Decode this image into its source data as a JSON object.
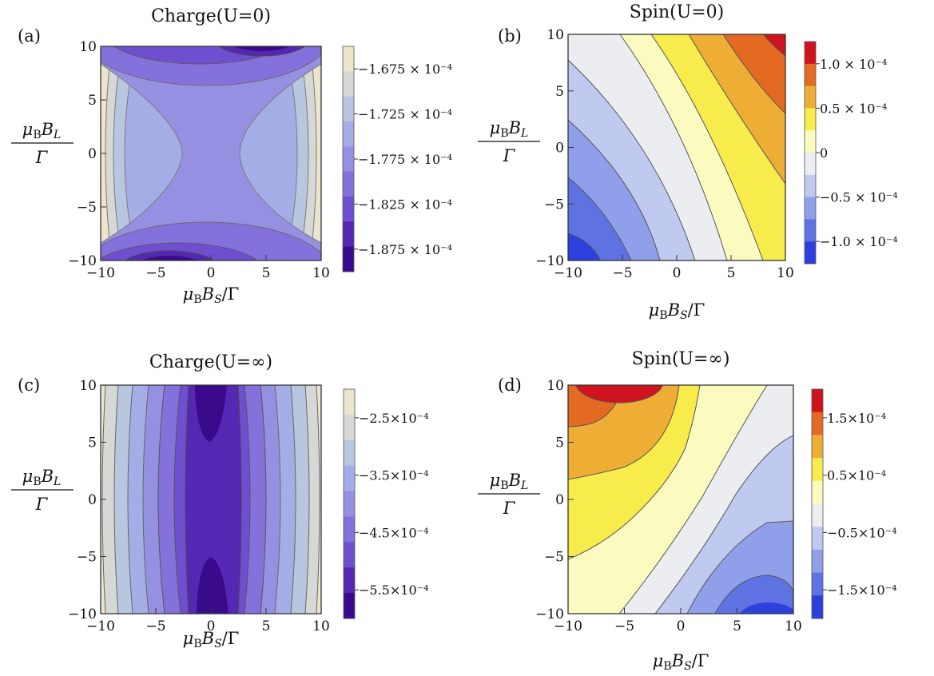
{
  "panels": [
    {
      "id": "a",
      "panel_label": "(a)",
      "title": "Charge(U=0)",
      "xlabel": "μ_B B_S/Γ",
      "ylabel": "μ_B B_L/Γ",
      "x_ticks": [
        "−10",
        "−5",
        "0",
        "5",
        "10"
      ],
      "y_ticks": [
        "10",
        "5",
        "0",
        "−5",
        "−10"
      ],
      "colorbar_ticks": [
        "−1.675 × 10⁻⁴",
        "−1.725 × 10⁻⁴",
        "−1.775 × 10⁻⁴",
        "−1.825 × 10⁻⁴",
        "−1.875 × 10⁻⁴"
      ],
      "colorbar_colors": [
        "#ece4cc",
        "#d6d8d6",
        "#b9c6e0",
        "#a5ade6",
        "#9590e2",
        "#8471dc",
        "#6e4fcf",
        "#5428b3",
        "#3a0a8c"
      ]
    },
    {
      "id": "b",
      "panel_label": "(b)",
      "title": "Spin(U=0)",
      "xlabel": "μ_B B_S/Γ",
      "ylabel": "μ_B B_L/Γ",
      "x_ticks": [
        "−10",
        "−5",
        "0",
        "5",
        "10"
      ],
      "y_ticks": [
        "10",
        "5",
        "0",
        "−5",
        "−10"
      ],
      "colorbar_ticks": [
        "1.0 × 10⁻⁴",
        "0.5 × 10⁻⁴",
        "0",
        "−0.5 × 10⁻⁴",
        "−1.0 × 10⁻⁴"
      ],
      "colorbar_colors": [
        "#d0141f",
        "#e46a22",
        "#eeae36",
        "#f7ec4b",
        "#fbfbc0",
        "#ecedf0",
        "#c0c9ef",
        "#8f9fea",
        "#5f72e2",
        "#2e3fe0"
      ]
    },
    {
      "id": "c",
      "panel_label": "(c)",
      "title": "Charge(U=∞)",
      "xlabel": "μ_B B_S/Γ",
      "ylabel": "μ_B B_L/Γ",
      "x_ticks": [
        "−10",
        "−5",
        "0",
        "5",
        "10"
      ],
      "y_ticks": [
        "10",
        "5",
        "0",
        "−5",
        "−10"
      ],
      "colorbar_ticks": [
        "−2.5×10⁻⁴",
        "−3.5×10⁻⁴",
        "−4.5×10⁻⁴",
        "−5.5×10⁻⁴"
      ],
      "colorbar_colors": [
        "#ece4cc",
        "#d6d8d6",
        "#b9c6e0",
        "#a5ade6",
        "#9590e2",
        "#8471dc",
        "#6e4fcf",
        "#5428b3",
        "#3a0a8c"
      ]
    },
    {
      "id": "d",
      "panel_label": "(d)",
      "title": "Spin(U=∞)",
      "xlabel": "μ_B B_S/Γ",
      "ylabel": "μ_B B_L/Γ",
      "x_ticks": [
        "−10",
        "−5",
        "0",
        "5",
        "10"
      ],
      "y_ticks": [
        "10",
        "5",
        "0",
        "−5",
        "−10"
      ],
      "colorbar_ticks": [
        "1.5×10⁻⁴",
        "0.5×10⁻⁴",
        "−0.5×10⁻⁴",
        "−1.5×10⁻⁴"
      ],
      "colorbar_colors": [
        "#d0141f",
        "#e46a22",
        "#eeae36",
        "#f7ec4b",
        "#fbfbc0",
        "#ecedf0",
        "#c0c9ef",
        "#8f9fea",
        "#5f72e2",
        "#2e3fe0"
      ]
    }
  ],
  "chart_data": [
    {
      "type": "heatmap",
      "title": "Charge(U=0)",
      "xlabel": "μ_B B_S/Γ",
      "ylabel": "μ_B B_L/Γ",
      "xlim": [
        -10,
        10
      ],
      "ylim": [
        -10,
        10
      ],
      "colorbar_range": [
        -0.00019,
        -0.000165
      ],
      "contour_levels": [
        -0.0001675,
        -0.00017,
        -0.0001725,
        -0.000175,
        -0.0001775,
        -0.00018,
        -0.0001825,
        -0.000185,
        -0.0001875
      ],
      "pattern": "saddle: minimum near (-3, ±10), maximum at x = ±10",
      "series": []
    },
    {
      "type": "heatmap",
      "title": "Spin(U=0)",
      "xlabel": "μ_B B_S/Γ",
      "ylabel": "μ_B B_L/Γ",
      "xlim": [
        -10,
        10
      ],
      "ylim": [
        -10,
        10
      ],
      "colorbar_range": [
        -0.000125,
        0.000125
      ],
      "contour_levels": [
        -0.0001,
        -7.5e-05,
        -5e-05,
        -2.5e-05,
        0,
        2.5e-05,
        5e-05,
        7.5e-05,
        0.0001
      ],
      "pattern": "diagonal bands, maximum at (10, 10), minimum at (-10, -10)",
      "series": []
    },
    {
      "type": "heatmap",
      "title": "Charge(U=∞)",
      "xlabel": "μ_B B_S/Γ",
      "ylabel": "μ_B B_L/Γ",
      "xlim": [
        -10,
        10
      ],
      "ylim": [
        -10,
        10
      ],
      "colorbar_range": [
        -0.0006,
        -0.0002
      ],
      "contour_levels": [
        -0.00025,
        -0.0003,
        -0.00035,
        -0.0004,
        -0.00045,
        -0.0005,
        -0.00055
      ],
      "pattern": "vertical bands, minimum near x = 0 at y = ±10, maximum at x = ±10",
      "series": []
    },
    {
      "type": "heatmap",
      "title": "Spin(U=∞)",
      "xlabel": "μ_B B_S/Γ",
      "ylabel": "μ_B B_L/Γ",
      "xlim": [
        -10,
        10
      ],
      "ylim": [
        -10,
        10
      ],
      "colorbar_range": [
        -0.0002,
        0.0002
      ],
      "contour_levels": [
        -0.00015,
        -0.0001,
        -5e-05,
        0,
        5e-05,
        0.0001,
        0.00015
      ],
      "pattern": "anti-diagonal bands, maximum near (-7, 10), minimum near (6, -10)",
      "series": []
    }
  ]
}
